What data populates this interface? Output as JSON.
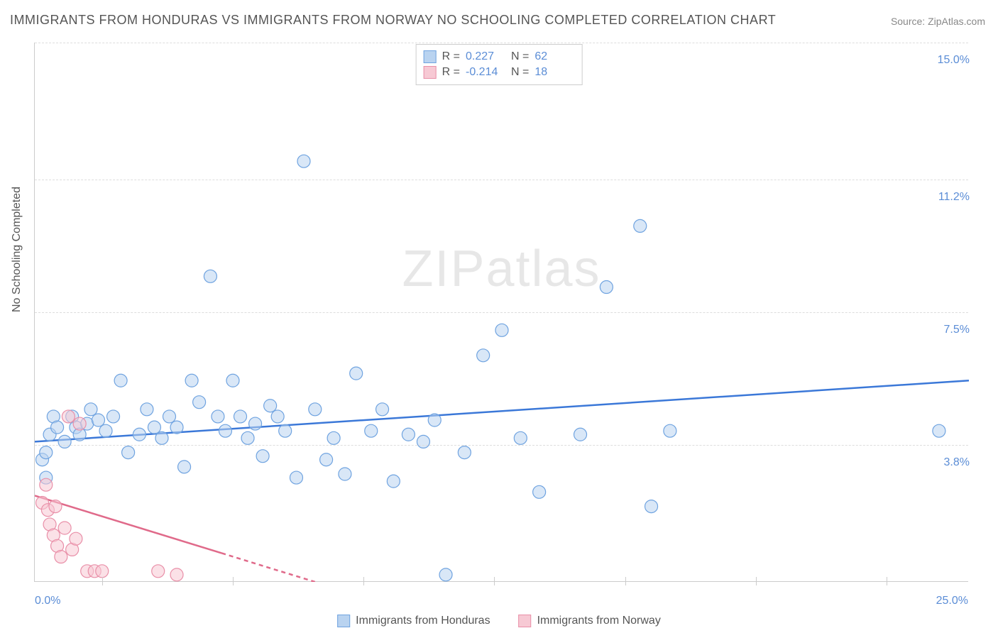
{
  "title": "IMMIGRANTS FROM HONDURAS VS IMMIGRANTS FROM NORWAY NO SCHOOLING COMPLETED CORRELATION CHART",
  "source": "Source: ZipAtlas.com",
  "watermark": "ZIPatlas",
  "y_axis_label": "No Schooling Completed",
  "chart": {
    "type": "scatter",
    "xlim": [
      0,
      25
    ],
    "ylim": [
      0,
      15
    ],
    "y_ticks": [
      3.8,
      7.5,
      11.2,
      15.0
    ],
    "y_tick_labels": [
      "3.8%",
      "7.5%",
      "11.2%",
      "15.0%"
    ],
    "x_corner_labels": [
      "0.0%",
      "25.0%"
    ],
    "x_tick_positions": [
      1.8,
      5.3,
      8.8,
      12.3,
      15.8,
      19.3,
      22.8
    ],
    "background_color": "#ffffff",
    "grid_color": "#dddddd",
    "axis_color": "#cccccc",
    "axis_value_color": "#5b8dd6",
    "marker_radius": 9,
    "marker_stroke_width": 1.2,
    "trend_line_width": 2.5
  },
  "series": [
    {
      "name": "Immigrants from Honduras",
      "fill": "#b9d3f0",
      "stroke": "#6fa3e0",
      "fill_opacity": 0.55,
      "trend_color": "#3b78d8",
      "trend": {
        "x1": 0,
        "y1": 3.9,
        "x2": 25,
        "y2": 5.6
      },
      "points": [
        [
          0.2,
          3.4
        ],
        [
          0.3,
          3.6
        ],
        [
          0.3,
          2.9
        ],
        [
          0.4,
          4.1
        ],
        [
          0.5,
          4.6
        ],
        [
          0.6,
          4.3
        ],
        [
          0.8,
          3.9
        ],
        [
          1.0,
          4.6
        ],
        [
          1.1,
          4.3
        ],
        [
          1.2,
          4.1
        ],
        [
          1.4,
          4.4
        ],
        [
          1.5,
          4.8
        ],
        [
          1.7,
          4.5
        ],
        [
          1.9,
          4.2
        ],
        [
          2.1,
          4.6
        ],
        [
          2.3,
          5.6
        ],
        [
          2.5,
          3.6
        ],
        [
          2.8,
          4.1
        ],
        [
          3.0,
          4.8
        ],
        [
          3.2,
          4.3
        ],
        [
          3.4,
          4.0
        ],
        [
          3.6,
          4.6
        ],
        [
          3.8,
          4.3
        ],
        [
          4.0,
          3.2
        ],
        [
          4.2,
          5.6
        ],
        [
          4.4,
          5.0
        ],
        [
          4.7,
          8.5
        ],
        [
          4.9,
          4.6
        ],
        [
          5.1,
          4.2
        ],
        [
          5.3,
          5.6
        ],
        [
          5.5,
          4.6
        ],
        [
          5.7,
          4.0
        ],
        [
          5.9,
          4.4
        ],
        [
          6.1,
          3.5
        ],
        [
          6.3,
          4.9
        ],
        [
          6.5,
          4.6
        ],
        [
          6.7,
          4.2
        ],
        [
          7.0,
          2.9
        ],
        [
          7.2,
          11.7
        ],
        [
          7.5,
          4.8
        ],
        [
          7.8,
          3.4
        ],
        [
          8.0,
          4.0
        ],
        [
          8.3,
          3.0
        ],
        [
          8.6,
          5.8
        ],
        [
          9.0,
          4.2
        ],
        [
          9.3,
          4.8
        ],
        [
          9.6,
          2.8
        ],
        [
          10.0,
          4.1
        ],
        [
          10.4,
          3.9
        ],
        [
          10.7,
          4.5
        ],
        [
          11.0,
          0.2
        ],
        [
          11.5,
          3.6
        ],
        [
          12.0,
          6.3
        ],
        [
          12.5,
          7.0
        ],
        [
          13.0,
          4.0
        ],
        [
          13.5,
          2.5
        ],
        [
          14.6,
          4.1
        ],
        [
          15.3,
          8.2
        ],
        [
          16.2,
          9.9
        ],
        [
          16.5,
          2.1
        ],
        [
          17.0,
          4.2
        ],
        [
          24.2,
          4.2
        ]
      ]
    },
    {
      "name": "Immigrants from Norway",
      "fill": "#f7c9d4",
      "stroke": "#e98fa8",
      "fill_opacity": 0.55,
      "trend_color": "#e06a8a",
      "trend": {
        "x1": 0,
        "y1": 2.4,
        "x2": 7.5,
        "y2": 0
      },
      "trend_dash_after_x": 5.0,
      "points": [
        [
          0.2,
          2.2
        ],
        [
          0.3,
          2.7
        ],
        [
          0.35,
          2.0
        ],
        [
          0.4,
          1.6
        ],
        [
          0.5,
          1.3
        ],
        [
          0.55,
          2.1
        ],
        [
          0.6,
          1.0
        ],
        [
          0.7,
          0.7
        ],
        [
          0.8,
          1.5
        ],
        [
          0.9,
          4.6
        ],
        [
          1.0,
          0.9
        ],
        [
          1.1,
          1.2
        ],
        [
          1.2,
          4.4
        ],
        [
          1.4,
          0.3
        ],
        [
          1.6,
          0.3
        ],
        [
          1.8,
          0.3
        ],
        [
          3.3,
          0.3
        ],
        [
          3.8,
          0.2
        ]
      ]
    }
  ],
  "stats_legend": [
    {
      "swatch_fill": "#b9d3f0",
      "swatch_stroke": "#6fa3e0",
      "r_label": "R =",
      "r": "0.227",
      "n_label": "N =",
      "n": "62"
    },
    {
      "swatch_fill": "#f7c9d4",
      "swatch_stroke": "#e98fa8",
      "r_label": "R =",
      "r": "-0.214",
      "n_label": "N =",
      "n": "18"
    }
  ],
  "bottom_legend": [
    {
      "swatch_fill": "#b9d3f0",
      "swatch_stroke": "#6fa3e0",
      "label": "Immigrants from Honduras"
    },
    {
      "swatch_fill": "#f7c9d4",
      "swatch_stroke": "#e98fa8",
      "label": "Immigrants from Norway"
    }
  ]
}
